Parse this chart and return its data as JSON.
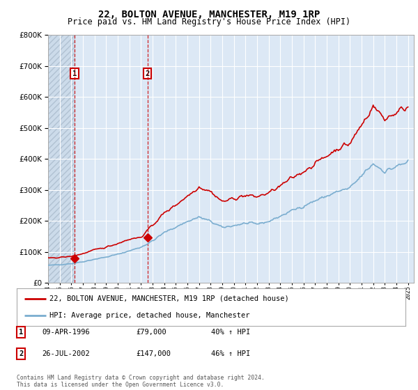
{
  "title": "22, BOLTON AVENUE, MANCHESTER, M19 1RP",
  "subtitle": "Price paid vs. HM Land Registry's House Price Index (HPI)",
  "title_fontsize": 10,
  "subtitle_fontsize": 8.5,
  "ylim": [
    0,
    800000
  ],
  "yticks": [
    0,
    100000,
    200000,
    300000,
    400000,
    500000,
    600000,
    700000,
    800000
  ],
  "ytick_labels": [
    "£0",
    "£100K",
    "£200K",
    "£300K",
    "£400K",
    "£500K",
    "£600K",
    "£700K",
    "£800K"
  ],
  "xlim_start": 1994.0,
  "xlim_end": 2025.5,
  "sale1_date": 1996.27,
  "sale1_price": 79000,
  "sale1_label": "1",
  "sale2_date": 2002.56,
  "sale2_price": 147000,
  "sale2_label": "2",
  "hpi_color": "#7aadcf",
  "property_color": "#cc0000",
  "background_color": "#ffffff",
  "plot_bg_color": "#dce8f5",
  "grid_color": "#ffffff",
  "legend_label_property": "22, BOLTON AVENUE, MANCHESTER, M19 1RP (detached house)",
  "legend_label_hpi": "HPI: Average price, detached house, Manchester",
  "table_row1": [
    "1",
    "09-APR-1996",
    "£79,000",
    "40% ↑ HPI"
  ],
  "table_row2": [
    "2",
    "26-JUL-2002",
    "£147,000",
    "46% ↑ HPI"
  ],
  "footnote": "Contains HM Land Registry data © Crown copyright and database right 2024.\nThis data is licensed under the Open Government Licence v3.0."
}
